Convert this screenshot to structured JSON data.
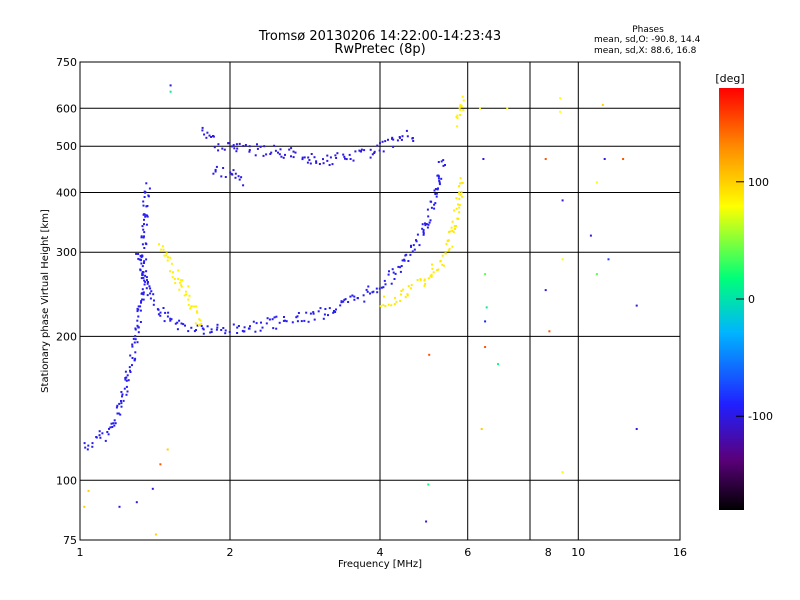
{
  "chart_data": {
    "type": "scatter",
    "title": "Tromsø 20130206 14:22:00-14:23:43",
    "subtitle": "RwPretec (8p)",
    "xlabel": "Frequency [MHz]",
    "ylabel": "Stationary phase Virtual Height [km]",
    "x_scale": "log",
    "y_scale": "log",
    "xlim": [
      1,
      16
    ],
    "ylim": [
      75,
      750
    ],
    "x_ticks": [
      1,
      2,
      4,
      6,
      10,
      16
    ],
    "x_tick_labels": [
      "1",
      "2",
      "4",
      "6",
      "10",
      "16"
    ],
    "x_gridlines": [
      1,
      2,
      4,
      6,
      8,
      10,
      16
    ],
    "extra_x_labels": [
      {
        "x": 8.7,
        "label": "8"
      }
    ],
    "y_ticks": [
      75,
      100,
      200,
      300,
      400,
      500,
      600,
      750
    ],
    "y_tick_labels": [
      "75",
      "100",
      "200",
      "300",
      "400",
      "500",
      "600",
      "750"
    ],
    "grid": true,
    "phase_stats": {
      "heading": "Phases",
      "o_line": "mean, sd,O: -90.8, 14.4",
      "x_line": "mean, sd,X:  88.6, 16.8"
    },
    "colorbar": {
      "label": "[deg]",
      "range": [
        -180,
        180
      ],
      "ticks": [
        100,
        0,
        -100
      ],
      "tick_labels": [
        "100",
        "0",
        "-100"
      ],
      "colormap": [
        "#000000",
        "#5a007a",
        "#2020ff",
        "#00b4ff",
        "#00ff78",
        "#ffff00",
        "#ff8c00",
        "#ff0000"
      ]
    },
    "traces": [
      {
        "name": "",
        "phase": -95,
        "x": [
          1.02,
          1.06,
          1.1,
          1.14,
          1.18,
          1.21,
          1.24,
          1.27,
          1.29,
          1.31,
          1.32,
          1.33,
          1.335,
          1.34,
          1.345,
          1.35,
          1.36
        ],
        "y": [
          118,
          120,
          124,
          128,
          134,
          150,
          165,
          178,
          195,
          215,
          240,
          270,
          300,
          330,
          360,
          390,
          420
        ]
      },
      {
        "name": "",
        "phase": -95,
        "x": [
          1.3,
          1.34,
          1.38,
          1.42,
          1.48,
          1.55,
          1.65,
          1.75,
          1.9,
          2.05,
          2.25,
          2.5,
          2.8,
          3.1,
          3.4,
          3.7,
          4.0,
          4.3,
          4.6,
          4.85,
          5.05,
          5.2,
          5.32
        ],
        "y": [
          300,
          270,
          245,
          230,
          222,
          214,
          210,
          208,
          207,
          208,
          211,
          215,
          220,
          226,
          235,
          245,
          258,
          275,
          300,
          330,
          370,
          420,
          470
        ]
      },
      {
        "name": "",
        "phase": 85,
        "x": [
          1.45,
          1.5,
          1.55,
          1.6,
          1.65,
          1.7,
          1.75
        ],
        "y": [
          310,
          290,
          270,
          255,
          240,
          225,
          210
        ]
      },
      {
        "name": "",
        "phase": 88,
        "x": [
          4.0,
          4.3,
          4.6,
          4.9,
          5.15,
          5.35,
          5.5,
          5.6,
          5.68,
          5.75,
          5.8
        ],
        "y": [
          235,
          242,
          252,
          264,
          278,
          295,
          315,
          340,
          370,
          400,
          430
        ]
      },
      {
        "name": "",
        "phase": -100,
        "x": [
          1.75,
          1.9,
          2.0,
          2.1,
          2.4,
          2.6,
          2.8,
          3.0,
          3.2,
          3.4,
          3.6,
          3.8,
          4.1,
          4.3,
          4.5,
          4.7
        ],
        "y": [
          535,
          505,
          500,
          495,
          490,
          485,
          478,
          470,
          470,
          475,
          480,
          490,
          505,
          515,
          525,
          530
        ]
      },
      {
        "name": "",
        "phase": -100,
        "x": [
          1.85,
          1.95,
          2.05,
          2.15
        ],
        "y": [
          445,
          440,
          430,
          425
        ]
      },
      {
        "name": "",
        "phase": 85,
        "x": [
          5.7,
          5.75,
          5.8,
          5.85
        ],
        "y": [
          560,
          590,
          615,
          640
        ]
      }
    ],
    "scatter_points": [
      {
        "x": 1.52,
        "y": 670,
        "phase": -100
      },
      {
        "x": 1.52,
        "y": 650,
        "phase": 10
      },
      {
        "x": 6.35,
        "y": 600,
        "phase": 85
      },
      {
        "x": 6.45,
        "y": 470,
        "phase": -100
      },
      {
        "x": 6.5,
        "y": 270,
        "phase": 40
      },
      {
        "x": 6.55,
        "y": 230,
        "phase": 10
      },
      {
        "x": 6.5,
        "y": 215,
        "phase": -90
      },
      {
        "x": 6.5,
        "y": 190,
        "phase": 150
      },
      {
        "x": 6.9,
        "y": 175,
        "phase": 20
      },
      {
        "x": 7.2,
        "y": 600,
        "phase": 80
      },
      {
        "x": 8.6,
        "y": 470,
        "phase": 150
      },
      {
        "x": 8.6,
        "y": 250,
        "phase": -100
      },
      {
        "x": 8.75,
        "y": 205,
        "phase": 150
      },
      {
        "x": 9.2,
        "y": 630,
        "phase": 80
      },
      {
        "x": 9.2,
        "y": 590,
        "phase": 80
      },
      {
        "x": 9.3,
        "y": 385,
        "phase": -100
      },
      {
        "x": 9.3,
        "y": 290,
        "phase": 80
      },
      {
        "x": 9.3,
        "y": 104,
        "phase": 80
      },
      {
        "x": 10.6,
        "y": 325,
        "phase": -100
      },
      {
        "x": 10.9,
        "y": 420,
        "phase": 80
      },
      {
        "x": 10.9,
        "y": 270,
        "phase": 40
      },
      {
        "x": 11.2,
        "y": 610,
        "phase": 100
      },
      {
        "x": 11.3,
        "y": 470,
        "phase": -100
      },
      {
        "x": 11.5,
        "y": 290,
        "phase": -80
      },
      {
        "x": 12.3,
        "y": 470,
        "phase": 150
      },
      {
        "x": 13.1,
        "y": 232,
        "phase": -100
      },
      {
        "x": 13.1,
        "y": 128,
        "phase": -100
      },
      {
        "x": 5.02,
        "y": 183,
        "phase": 150
      },
      {
        "x": 4.95,
        "y": 82,
        "phase": -100
      },
      {
        "x": 5.0,
        "y": 98,
        "phase": 20
      },
      {
        "x": 6.4,
        "y": 128,
        "phase": 100
      },
      {
        "x": 1.02,
        "y": 88,
        "phase": 100
      },
      {
        "x": 1.04,
        "y": 95,
        "phase": 100
      },
      {
        "x": 1.2,
        "y": 88,
        "phase": -100
      },
      {
        "x": 1.3,
        "y": 90,
        "phase": -100
      },
      {
        "x": 1.4,
        "y": 96,
        "phase": -100
      },
      {
        "x": 1.45,
        "y": 108,
        "phase": 150
      },
      {
        "x": 1.5,
        "y": 116,
        "phase": 100
      },
      {
        "x": 1.42,
        "y": 77,
        "phase": 100
      }
    ]
  }
}
